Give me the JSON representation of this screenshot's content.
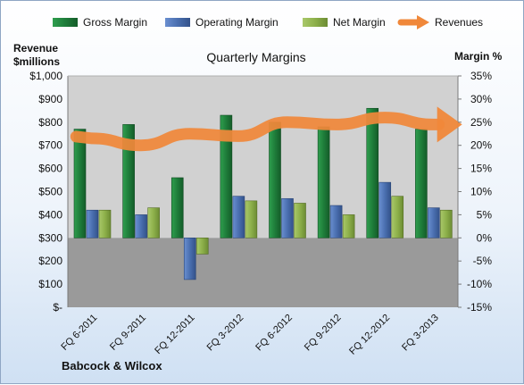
{
  "chart_data": {
    "type": "bar",
    "title": "Quarterly Margins",
    "left_axis_label_line1": "Revenue",
    "left_axis_label_line2": "$millions",
    "right_axis_label": "Margin %",
    "source_label": "Babcock & Wilcox",
    "categories": [
      "FQ 6-2011",
      "FQ 9-2011",
      "FQ 12-2011",
      "FQ 3-2012",
      "FQ 6-2012",
      "FQ 9-2012",
      "FQ 12-2012",
      "FQ 3-2013"
    ],
    "left_axis": {
      "min": 0,
      "max": 1000,
      "step": 100,
      "tick_labels": [
        "$-",
        "$100",
        "$200",
        "$300",
        "$400",
        "$500",
        "$600",
        "$700",
        "$800",
        "$900",
        "$1,000"
      ]
    },
    "right_axis": {
      "min": -15,
      "max": 35,
      "step": 5,
      "tick_labels": [
        "-15%",
        "-10%",
        "-5%",
        "0%",
        "5%",
        "10%",
        "15%",
        "20%",
        "25%",
        "30%",
        "35%"
      ]
    },
    "series": [
      {
        "name": "Gross Margin",
        "axis": "right",
        "values": [
          23.5,
          24.5,
          13.0,
          26.5,
          25.0,
          24.0,
          28.0,
          23.5
        ]
      },
      {
        "name": "Operating Margin",
        "axis": "right",
        "values": [
          6.0,
          5.0,
          -9.0,
          9.0,
          8.5,
          7.0,
          12.0,
          6.5
        ]
      },
      {
        "name": "Net Margin",
        "axis": "right",
        "values": [
          6.0,
          6.5,
          -3.5,
          8.0,
          7.5,
          5.0,
          9.0,
          6.0
        ]
      },
      {
        "name": "Revenues",
        "axis": "left",
        "values": [
          730,
          700,
          750,
          740,
          800,
          790,
          820,
          790
        ]
      }
    ],
    "colors": {
      "gross": "#1e7d3a",
      "operating": "#4a6fb0",
      "net": "#8db04a",
      "revenue": "#f0883a",
      "upper_plot": "#d1d1d1",
      "lower_plot": "#9a9a9a"
    },
    "legend_position": "top"
  }
}
